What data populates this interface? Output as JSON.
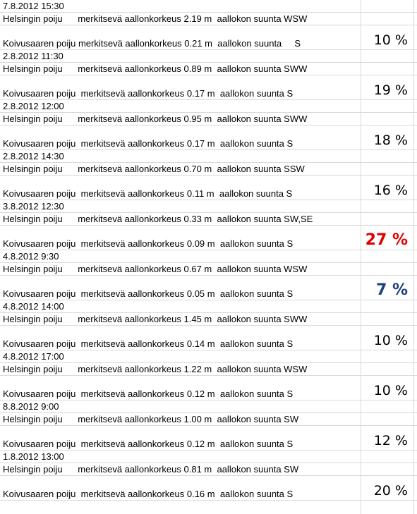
{
  "groups": [
    {
      "date": "7.8.2012 15:30",
      "helsinki": "Helsingin poiju      merkitsevä aallonkorkeus 2.19 m  aallokon suunta WSW",
      "koivusaari": "Koivusaaren poiju merkitsevä aallonkorkeus 0.21 m  aallokon suunta     S",
      "percent": "10 %",
      "style": "normal"
    },
    {
      "date": "2.8.2012 11:30",
      "helsinki": "Helsingin poiju      merkitsevä aallonkorkeus 0.89 m  aallokon suunta SWW",
      "koivusaari": "Koivusaaren poiju  merkitsevä aallonkorkeus 0.17 m  aallokon suunta S",
      "percent": "19 %",
      "style": "normal"
    },
    {
      "date": "2.8.2012 12:00",
      "helsinki": "Helsingin poiju      merkitsevä aallonkorkeus 0.95 m  aallokon suunta SWW",
      "koivusaari": "Koivusaaren poiju  merkitsevä aallonkorkeus 0.17 m  aallokon suunta S",
      "percent": "18 %",
      "style": "normal"
    },
    {
      "date": "2.8.2012 14:30",
      "helsinki": "Helsingin poiju      merkitsevä aallonkorkeus 0.70 m  aallokon suunta SSW",
      "koivusaari": "Koivusaaren poiju  merkitsevä aallonkorkeus 0.11 m  aallokon suunta S",
      "percent": "16 %",
      "style": "normal"
    },
    {
      "date": "3.8.2012 12:30",
      "helsinki": "Helsingin poiju      merkitsevä aallonkorkeus 0.33 m  aallokon suunta SW,SE",
      "koivusaari": "Koivusaaren poiju  merkitsevä aallonkorkeus 0.09 m  aallokon suunta S",
      "percent": "27 %",
      "style": "red"
    },
    {
      "date": "4.8.2012 9:30",
      "helsinki": "Helsingin poiju      merkitsevä aallonkorkeus 0.67 m  aallokon suunta WSW",
      "koivusaari": "Koivusaaren poiju  merkitsevä aallonkorkeus 0.05 m  aallokon suunta S",
      "percent": "7 %",
      "style": "blue"
    },
    {
      "date": "4.8.2012 14:00",
      "helsinki": "Helsingin poiju      merkitsevä aallonkorkeus 1.45 m  aallokon suunta SWW",
      "koivusaari": "Koivusaaren poiju  merkitsevä aallonkorkeus 0.14 m  aallokon suunta S",
      "percent": "10 %",
      "style": "normal"
    },
    {
      "date": "4.8.2012 17:00",
      "helsinki": "Helsingin poiju      merkitsevä aallonkorkeus 1.22 m  aallokon suunta WSW",
      "koivusaari": "Koivusaaren poiju  merkitsevä aallonkorkeus 0.12 m  aallokon suunta S",
      "percent": "10 %",
      "style": "normal"
    },
    {
      "date": "8.8.2012 9:00",
      "helsinki": "Helsingin poiju      merkitsevä aallonkorkeus 1.00 m  aallokon suunta SW",
      "koivusaari": "Koivusaaren poiju  merkitsevä aallonkorkeus 0.12 m  aallokon suunta S",
      "percent": "12 %",
      "style": "normal"
    },
    {
      "date": "1.8.2012 13:00",
      "helsinki": "Helsingin poiju      merkitsevä aallonkorkeus 0.81 m  aallokon suunta SW",
      "koivusaari": "Koivusaaren poiju  merkitsevä aallonkorkeus 0.16 m  aallokon suunta S",
      "percent": "20 %",
      "style": "normal"
    }
  ],
  "colors": {
    "gridline": "#d9d9d9",
    "highlight_red": "#e00000",
    "highlight_blue": "#1f3f7a"
  }
}
